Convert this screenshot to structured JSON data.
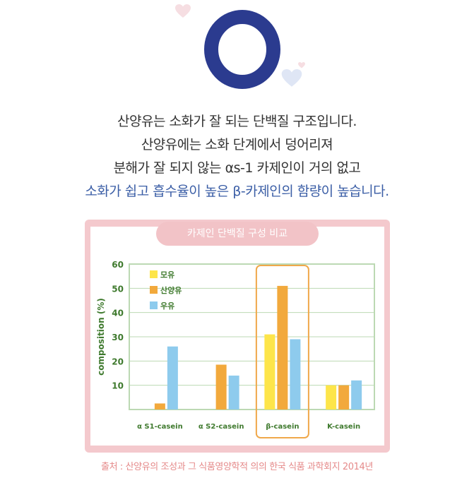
{
  "intro": {
    "line1": "산양유는 소화가 잘 되는 단백질 구조입니다.",
    "line2": "산양유에는 소화 단계에서 덩어리져",
    "line3": "분해가 잘 되지 않는 αs-1 카제인이 거의 없고",
    "line4": "소화가 쉽고 흡수율이 높은 β-카제인의 함량이 높습니다."
  },
  "source": "출처 : 산양유의 조성과 그 식품영양학적 의의 한국 식품 과학회지 2014년",
  "colors": {
    "big_o": "#2b3b8f",
    "title_pill": "#f2c3c7",
    "frame": "#f4c9cd",
    "highlight_box": "#f0a84a",
    "grid": "#bcd9b3",
    "axis_text": "#3f7a2e",
    "source_text": "#e58a8a",
    "accent_text": "#3b5ea6"
  },
  "chart_data": {
    "type": "bar",
    "title": "카제인 단백질 구성 비교",
    "ylabel": "composition (%)",
    "xlabel": "",
    "ylim": [
      0,
      60
    ],
    "yticks": [
      10,
      20,
      30,
      40,
      50,
      60
    ],
    "grid": true,
    "legend_position": "top-left",
    "categories": [
      "α S1-casein",
      "α S2-casein",
      "β-casein",
      "K-casein"
    ],
    "highlight_category": "β-casein",
    "series": [
      {
        "name": "모유",
        "color": "#fde54a",
        "values": [
          0,
          0,
          31,
          10
        ]
      },
      {
        "name": "산양유",
        "color": "#f2a93c",
        "values": [
          2.5,
          18.5,
          51,
          10
        ]
      },
      {
        "name": "우유",
        "color": "#8ecbed",
        "values": [
          26,
          14,
          29,
          12
        ]
      }
    ]
  }
}
